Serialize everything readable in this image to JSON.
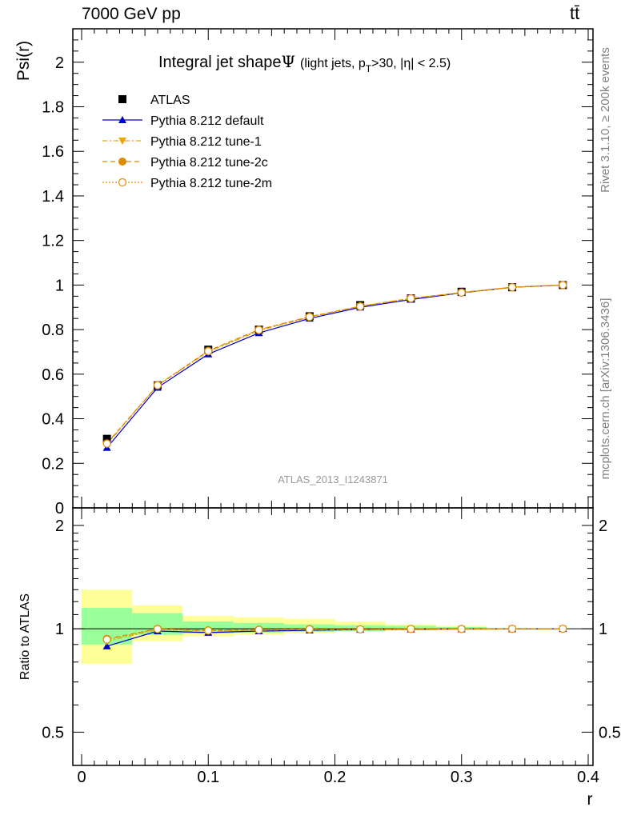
{
  "header": {
    "energy_label": "7000 GeV pp",
    "process_label": "tt̄"
  },
  "side": {
    "rivet_label": "Rivet 3.1.10, ≥ 200k events",
    "source_label": "mcplots.cern.ch [arXiv:1306.3436]"
  },
  "chart_data": [
    {
      "type": "line",
      "panel": "main",
      "title_main": "Integral jet shape",
      "title_symbol": "Ψ",
      "title_detail_1": "(light jets, p",
      "title_detail_sub": "T",
      "title_detail_2": ">30, |η| < 2.5)",
      "ylabel": "Psi(r)",
      "xlabel": "r",
      "xlim": [
        0,
        0.4
      ],
      "ylim": [
        0,
        2.15
      ],
      "yticks": [
        0,
        0.2,
        0.4,
        0.6,
        0.8,
        1,
        1.2,
        1.4,
        1.6,
        1.8,
        2
      ],
      "ytick_labels": [
        "0",
        "0.2",
        "0.4",
        "0.6",
        "0.8",
        "1",
        "1.2",
        "1.4",
        "1.6",
        "1.8",
        "2"
      ],
      "watermark": "ATLAS_2013_I1243871",
      "legend_position": "top-left",
      "x": [
        0.02,
        0.06,
        0.1,
        0.14,
        0.18,
        0.22,
        0.26,
        0.3,
        0.34,
        0.38
      ],
      "series": [
        {
          "name": "ATLAS",
          "color": "#000000",
          "marker": "square",
          "values": [
            0.31,
            0.55,
            0.71,
            0.8,
            0.86,
            0.91,
            0.94,
            0.97,
            0.99,
            1.0
          ]
        },
        {
          "name": "Pythia 8.212 default",
          "color": "#0000cc",
          "marker": "triangle-up",
          "values": [
            0.27,
            0.54,
            0.69,
            0.785,
            0.85,
            0.9,
            0.935,
            0.965,
            0.99,
            1.0
          ]
        },
        {
          "name": "Pythia 8.212 tune-1",
          "color": "#e8a800",
          "marker": "triangle-down",
          "values": [
            0.285,
            0.55,
            0.7,
            0.795,
            0.855,
            0.905,
            0.94,
            0.965,
            0.99,
            1.0
          ]
        },
        {
          "name": "Pythia 8.212 tune-2c",
          "color": "#e08a00",
          "marker": "circle",
          "values": [
            0.29,
            0.55,
            0.705,
            0.8,
            0.858,
            0.905,
            0.94,
            0.967,
            0.99,
            1.0
          ]
        },
        {
          "name": "Pythia 8.212 tune-2m",
          "color": "#e08a00",
          "marker": "circle-open",
          "values": [
            0.288,
            0.55,
            0.703,
            0.798,
            0.857,
            0.904,
            0.94,
            0.966,
            0.99,
            1.0
          ]
        }
      ]
    },
    {
      "type": "line",
      "panel": "ratio",
      "ylabel": "Ratio to ATLAS",
      "xlabel": "r",
      "xlim": [
        0,
        0.4
      ],
      "ylim": [
        0.4,
        2.25
      ],
      "yticks": [
        0.5,
        1,
        2
      ],
      "ytick_labels": [
        "0.5",
        "1",
        "2"
      ],
      "xticks": [
        0,
        0.1,
        0.2,
        0.3,
        0.4
      ],
      "xtick_labels": [
        "0",
        "0.1",
        "0.2",
        "0.3",
        "0.4"
      ],
      "bin_edges": [
        0,
        0.04,
        0.08,
        0.12,
        0.16,
        0.2,
        0.24,
        0.28,
        0.32,
        0.36,
        0.4
      ],
      "band_total": [
        [
          0.79,
          1.3
        ],
        [
          0.92,
          1.17
        ],
        [
          0.95,
          1.09
        ],
        [
          0.96,
          1.08
        ],
        [
          0.97,
          1.07
        ],
        [
          0.98,
          1.05
        ],
        [
          0.99,
          1.03
        ],
        [
          0.995,
          1.02
        ],
        [
          0.998,
          1.005
        ],
        [
          0.999,
          1.002
        ]
      ],
      "band_stat": [
        [
          0.9,
          1.15
        ],
        [
          0.96,
          1.11
        ],
        [
          0.97,
          1.05
        ],
        [
          0.975,
          1.04
        ],
        [
          0.98,
          1.03
        ],
        [
          0.985,
          1.025
        ],
        [
          0.99,
          1.02
        ],
        [
          0.995,
          1.012
        ],
        [
          0.998,
          1.004
        ],
        [
          0.999,
          1.001
        ]
      ],
      "band_colors": {
        "total": "#ffff99",
        "stat": "#99ff99"
      },
      "x": [
        0.02,
        0.06,
        0.1,
        0.14,
        0.18,
        0.22,
        0.26,
        0.3,
        0.34,
        0.38
      ],
      "series": [
        {
          "name": "Pythia 8.212 default",
          "color": "#0000cc",
          "marker": "triangle-up",
          "values": [
            0.89,
            0.985,
            0.975,
            0.985,
            0.99,
            0.995,
            0.997,
            0.998,
            0.999,
            1.0
          ]
        },
        {
          "name": "Pythia 8.212 tune-1",
          "color": "#e8a800",
          "marker": "triangle-down",
          "values": [
            0.92,
            0.995,
            0.985,
            0.99,
            0.995,
            0.995,
            0.998,
            0.998,
            1.0,
            1.0
          ]
        },
        {
          "name": "Pythia 8.212 tune-2c",
          "color": "#e08a00",
          "marker": "circle",
          "values": [
            0.935,
            1.0,
            0.99,
            0.995,
            0.998,
            0.996,
            0.999,
            0.999,
            1.0,
            1.0
          ]
        },
        {
          "name": "Pythia 8.212 tune-2m",
          "color": "#e08a00",
          "marker": "circle-open",
          "values": [
            0.93,
            0.998,
            0.988,
            0.993,
            0.997,
            0.996,
            0.999,
            0.999,
            1.0,
            1.0
          ]
        }
      ]
    }
  ]
}
